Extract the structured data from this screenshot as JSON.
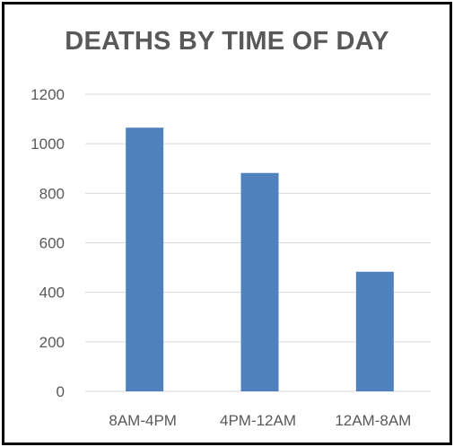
{
  "chart_data": {
    "type": "bar",
    "title": "DEATHS BY TIME OF DAY",
    "categories": [
      "8AM-4PM",
      "4PM-12AM",
      "12AM-8AM"
    ],
    "values": [
      1065,
      882,
      483
    ],
    "ylim": [
      0,
      1200
    ],
    "yticks": [
      "0",
      "200",
      "400",
      "600",
      "800",
      "1000",
      "1200"
    ],
    "ytick_values": [
      0,
      200,
      400,
      600,
      800,
      1000,
      1200
    ],
    "grid": true,
    "legend": "none",
    "bar_color": "#4f81bd",
    "grid_color": "#d9d9d9",
    "text_color": "#595959"
  }
}
